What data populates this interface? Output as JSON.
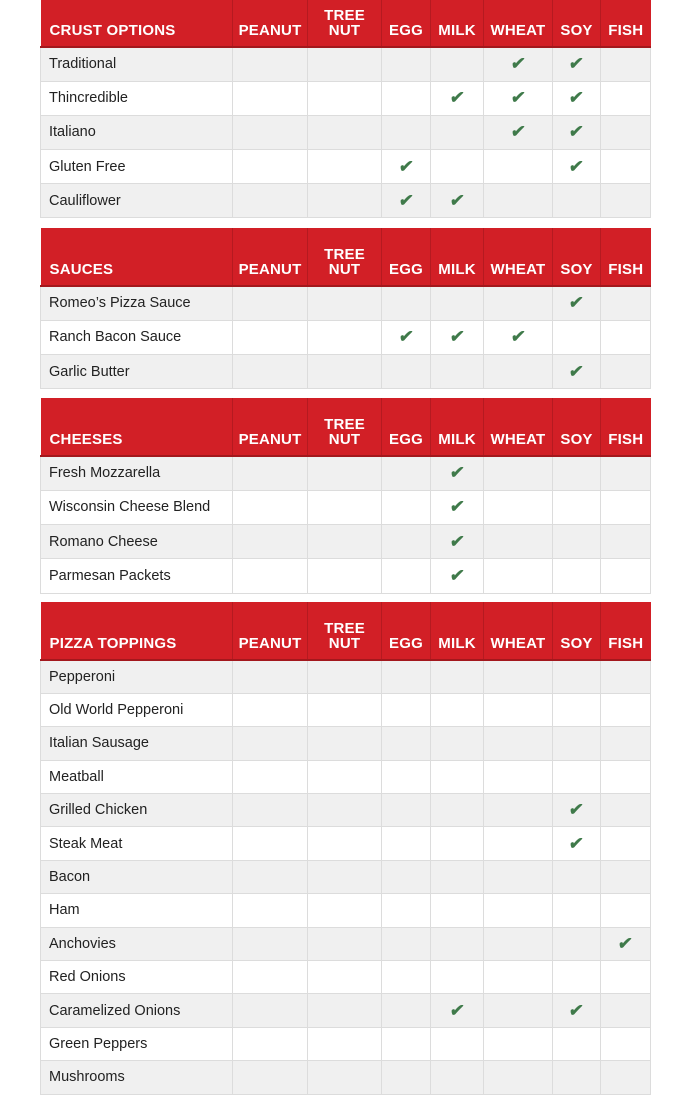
{
  "colors": {
    "header": "#d21f26",
    "check": "#3f7a4a"
  },
  "allergens": [
    "PEANUT",
    "TREE NUT",
    "EGG",
    "MILK",
    "WHEAT",
    "SOY",
    "FISH"
  ],
  "check_icon": "check-icon",
  "sections": [
    {
      "title": "CRUST OPTIONS",
      "rows": [
        {
          "name": "Traditional",
          "contains": [
            "WHEAT",
            "SOY"
          ]
        },
        {
          "name": "Thincredible",
          "contains": [
            "MILK",
            "WHEAT",
            "SOY"
          ]
        },
        {
          "name": "Italiano",
          "contains": [
            "WHEAT",
            "SOY"
          ]
        },
        {
          "name": "Gluten Free",
          "contains": [
            "EGG",
            "SOY"
          ]
        },
        {
          "name": "Cauliflower",
          "contains": [
            "EGG",
            "MILK"
          ]
        }
      ]
    },
    {
      "title": "SAUCES",
      "rows": [
        {
          "name": "Romeo’s Pizza Sauce",
          "contains": [
            "SOY"
          ]
        },
        {
          "name": "Ranch Bacon Sauce",
          "contains": [
            "EGG",
            "MILK",
            "WHEAT"
          ]
        },
        {
          "name": "Garlic Butter",
          "contains": [
            "SOY"
          ]
        }
      ]
    },
    {
      "title": "CHEESES",
      "rows": [
        {
          "name": "Fresh Mozzarella",
          "contains": [
            "MILK"
          ]
        },
        {
          "name": "Wisconsin Cheese Blend",
          "contains": [
            "MILK"
          ]
        },
        {
          "name": "Romano Cheese",
          "contains": [
            "MILK"
          ]
        },
        {
          "name": "Parmesan Packets",
          "contains": [
            "MILK"
          ]
        }
      ]
    },
    {
      "title": "PIZZA TOPPINGS",
      "rows": [
        {
          "name": "Pepperoni",
          "contains": []
        },
        {
          "name": "Old World Pepperoni",
          "contains": []
        },
        {
          "name": "Italian Sausage",
          "contains": []
        },
        {
          "name": "Meatball",
          "contains": []
        },
        {
          "name": "Grilled Chicken",
          "contains": [
            "SOY"
          ]
        },
        {
          "name": "Steak Meat",
          "contains": [
            "SOY"
          ]
        },
        {
          "name": "Bacon",
          "contains": []
        },
        {
          "name": "Ham",
          "contains": []
        },
        {
          "name": "Anchovies",
          "contains": [
            "FISH"
          ]
        },
        {
          "name": "Red Onions",
          "contains": []
        },
        {
          "name": "Caramelized Onions",
          "contains": [
            "MILK",
            "SOY"
          ]
        },
        {
          "name": "Green Peppers",
          "contains": []
        },
        {
          "name": "Mushrooms",
          "contains": []
        }
      ]
    }
  ]
}
